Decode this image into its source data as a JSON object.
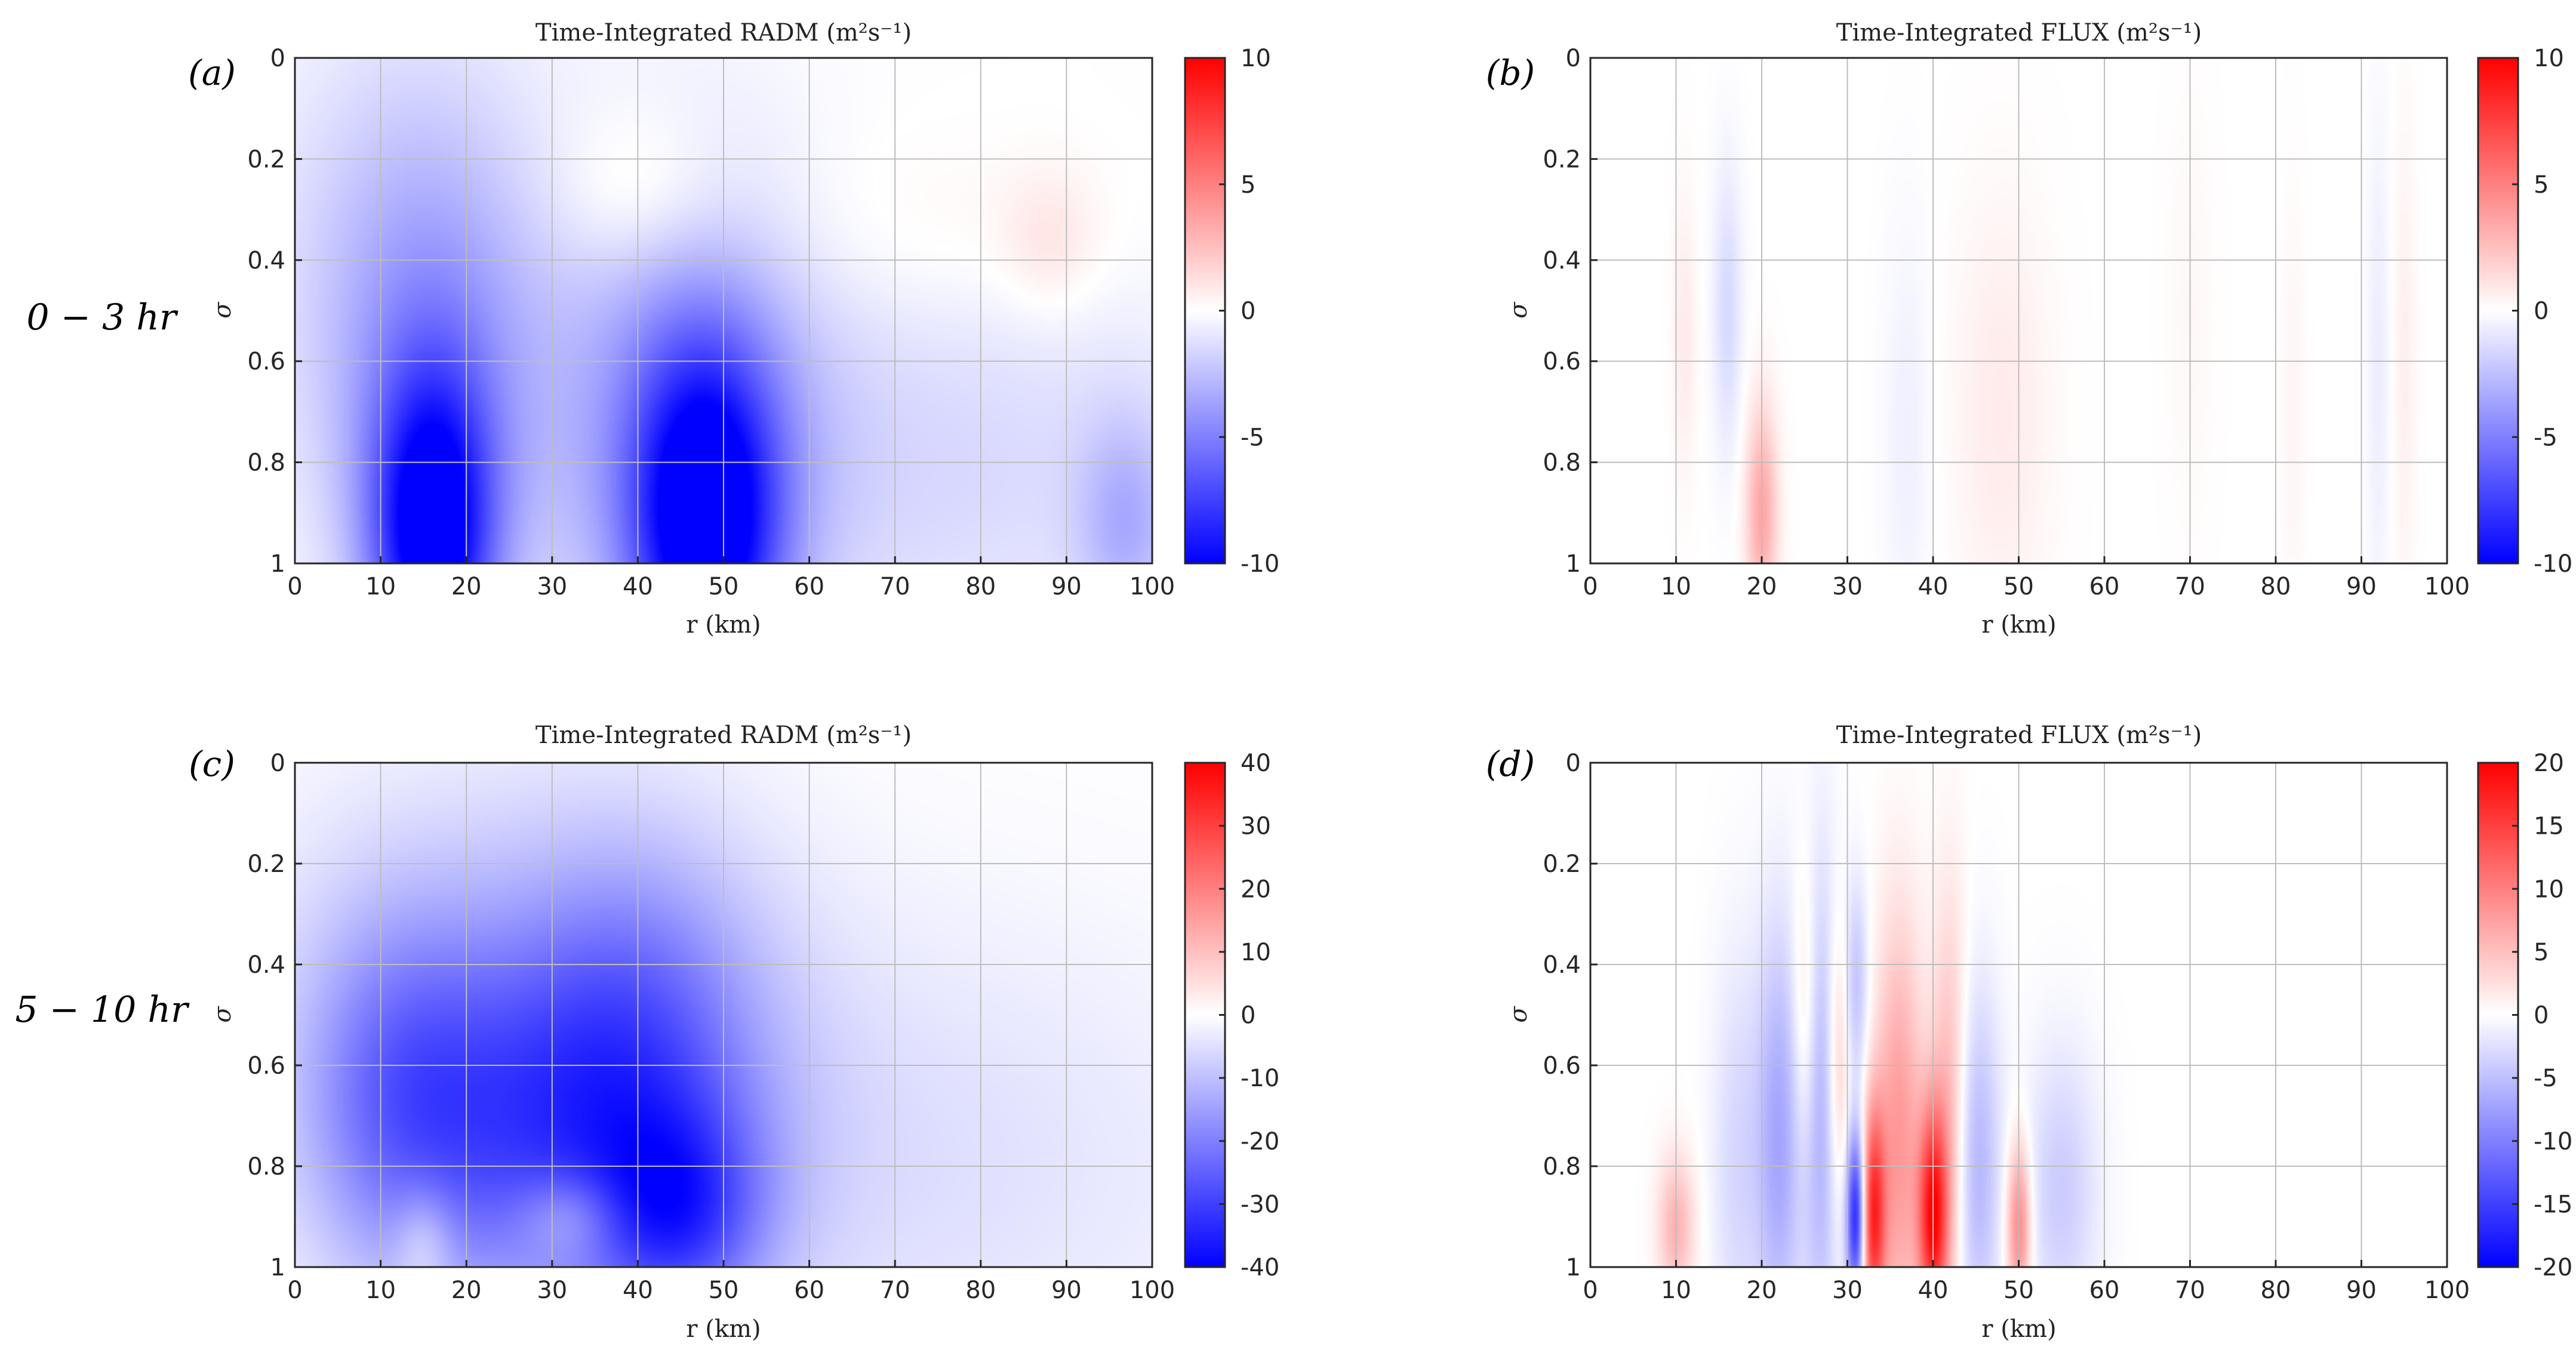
{
  "row_labels": [
    "0 − 3 hr",
    "5 − 10 hr"
  ],
  "colormap": {
    "negative": "#0000ff",
    "zero": "#ffffff",
    "positive": "#ff0000"
  },
  "chart_data": [
    {
      "panel": "(a)",
      "type": "heatmap",
      "title": "Time-Integrated RADM (m²s⁻¹)",
      "xlabel": "r (km)",
      "ylabel": "σ",
      "xlim": [
        0,
        100
      ],
      "ylim": [
        0,
        1
      ],
      "y_reversed": true,
      "grid": true,
      "xticks": [
        0,
        10,
        20,
        30,
        40,
        50,
        60,
        70,
        80,
        90,
        100
      ],
      "yticks": [
        0,
        0.2,
        0.4,
        0.6,
        0.8,
        1
      ],
      "colorbar": {
        "range": [
          -10,
          10
        ],
        "ticks": [
          10,
          5,
          0,
          -5,
          -10
        ]
      },
      "features": [
        {
          "r": 16,
          "sigma": 0.95,
          "value": -10,
          "sr": 5,
          "ss": 0.22
        },
        {
          "r": 48,
          "sigma": 0.93,
          "value": -10,
          "sr": 6,
          "ss": 0.24
        },
        {
          "r": 16,
          "sigma": 0.65,
          "value": -3,
          "sr": 9,
          "ss": 0.35
        },
        {
          "r": 45,
          "sigma": 0.7,
          "value": -3.5,
          "sr": 11,
          "ss": 0.35
        },
        {
          "r": 12,
          "sigma": 0.4,
          "value": -1.5,
          "sr": 12,
          "ss": 0.35
        },
        {
          "r": 75,
          "sigma": 0.8,
          "value": -1.5,
          "sr": 25,
          "ss": 0.3
        },
        {
          "r": 97,
          "sigma": 0.92,
          "value": -2.5,
          "sr": 4,
          "ss": 0.15
        },
        {
          "r": 40,
          "sigma": 0.27,
          "value": 1.5,
          "sr": 7,
          "ss": 0.12
        },
        {
          "r": 72,
          "sigma": 0.35,
          "value": 0.6,
          "sr": 18,
          "ss": 0.14
        },
        {
          "r": 88,
          "sigma": 0.37,
          "value": 1,
          "sr": 4,
          "ss": 0.1
        }
      ]
    },
    {
      "panel": "(b)",
      "type": "heatmap",
      "title": "Time-Integrated FLUX (m²s⁻¹)",
      "xlabel": "r (km)",
      "ylabel": "σ",
      "xlim": [
        0,
        100
      ],
      "ylim": [
        0,
        1
      ],
      "y_reversed": true,
      "grid": true,
      "xticks": [
        0,
        10,
        20,
        30,
        40,
        50,
        60,
        70,
        80,
        90,
        100
      ],
      "yticks": [
        0,
        0.2,
        0.4,
        0.6,
        0.8,
        1
      ],
      "colorbar": {
        "range": [
          -10,
          10
        ],
        "ticks": [
          10,
          5,
          0,
          -5,
          -10
        ]
      },
      "features": [
        {
          "r": 20,
          "sigma": 0.9,
          "value": 3.5,
          "sr": 1.3,
          "ss": 0.15
        },
        {
          "r": 16,
          "sigma": 0.5,
          "value": -1.5,
          "sr": 1.2,
          "ss": 0.2
        },
        {
          "r": 11,
          "sigma": 0.55,
          "value": 0.8,
          "sr": 1,
          "ss": 0.2
        },
        {
          "r": 48,
          "sigma": 0.7,
          "value": 0.8,
          "sr": 4,
          "ss": 0.3
        },
        {
          "r": 37,
          "sigma": 0.75,
          "value": -0.6,
          "sr": 2,
          "ss": 0.3
        },
        {
          "r": 92,
          "sigma": 0.6,
          "value": -0.7,
          "sr": 1,
          "ss": 0.35
        },
        {
          "r": 95,
          "sigma": 0.6,
          "value": 0.6,
          "sr": 1,
          "ss": 0.35
        },
        {
          "r": 82,
          "sigma": 0.7,
          "value": 0.4,
          "sr": 1,
          "ss": 0.3
        },
        {
          "r": 70,
          "sigma": 0.5,
          "value": 0.3,
          "sr": 2,
          "ss": 0.3
        }
      ]
    },
    {
      "panel": "(c)",
      "type": "heatmap",
      "title": "Time-Integrated RADM (m²s⁻¹)",
      "xlabel": "r (km)",
      "ylabel": "σ",
      "xlim": [
        0,
        100
      ],
      "ylim": [
        0,
        1
      ],
      "y_reversed": true,
      "grid": true,
      "xticks": [
        0,
        10,
        20,
        30,
        40,
        50,
        60,
        70,
        80,
        90,
        100
      ],
      "yticks": [
        0,
        0.2,
        0.4,
        0.6,
        0.8,
        1
      ],
      "colorbar": {
        "range": [
          -40,
          40
        ],
        "ticks": [
          40,
          30,
          20,
          10,
          0,
          -10,
          -20,
          -30,
          -40
        ]
      },
      "features": [
        {
          "r": 30,
          "sigma": 0.75,
          "value": -22,
          "sr": 15,
          "ss": 0.25
        },
        {
          "r": 45,
          "sigma": 0.9,
          "value": -20,
          "sr": 7,
          "ss": 0.15
        },
        {
          "r": 12,
          "sigma": 0.65,
          "value": -14,
          "sr": 8,
          "ss": 0.25
        },
        {
          "r": 40,
          "sigma": 0.5,
          "value": -12,
          "sr": 10,
          "ss": 0.25
        },
        {
          "r": 25,
          "sigma": 0.4,
          "value": -7,
          "sr": 20,
          "ss": 0.3
        },
        {
          "r": 70,
          "sigma": 0.8,
          "value": -5,
          "sr": 30,
          "ss": 0.35
        },
        {
          "r": 15,
          "sigma": 0.95,
          "value": 9,
          "sr": 2.5,
          "ss": 0.08
        },
        {
          "r": 32,
          "sigma": 0.9,
          "value": 10,
          "sr": 4,
          "ss": 0.06
        }
      ]
    },
    {
      "panel": "(d)",
      "type": "heatmap",
      "title": "Time-Integrated FLUX (m²s⁻¹)",
      "xlabel": "r (km)",
      "ylabel": "σ",
      "xlim": [
        0,
        100
      ],
      "ylim": [
        0,
        1
      ],
      "y_reversed": true,
      "grid": true,
      "xticks": [
        0,
        10,
        20,
        30,
        40,
        50,
        60,
        70,
        80,
        90,
        100
      ],
      "yticks": [
        0,
        0.2,
        0.4,
        0.6,
        0.8,
        1
      ],
      "colorbar": {
        "range": [
          -20,
          20
        ],
        "ticks": [
          20,
          15,
          10,
          5,
          0,
          -5,
          -10,
          -15,
          -20
        ]
      },
      "features": [
        {
          "r": 31,
          "sigma": 0.9,
          "value": -18,
          "sr": 0.8,
          "ss": 0.12
        },
        {
          "r": 33,
          "sigma": 0.9,
          "value": 16,
          "sr": 1,
          "ss": 0.15
        },
        {
          "r": 36,
          "sigma": 0.75,
          "value": 8,
          "sr": 2,
          "ss": 0.3
        },
        {
          "r": 40,
          "sigma": 0.9,
          "value": 18,
          "sr": 1.2,
          "ss": 0.15
        },
        {
          "r": 42,
          "sigma": 0.7,
          "value": 6,
          "sr": 1.5,
          "ss": 0.3
        },
        {
          "r": 45,
          "sigma": 0.8,
          "value": -6,
          "sr": 2,
          "ss": 0.25
        },
        {
          "r": 50,
          "sigma": 0.92,
          "value": 10,
          "sr": 1,
          "ss": 0.12
        },
        {
          "r": 22,
          "sigma": 0.75,
          "value": -7,
          "sr": 2,
          "ss": 0.3
        },
        {
          "r": 27,
          "sigma": 0.7,
          "value": -6,
          "sr": 1.5,
          "ss": 0.35
        },
        {
          "r": 25,
          "sigma": 0.5,
          "value": 4,
          "sr": 1,
          "ss": 0.2
        },
        {
          "r": 10,
          "sigma": 0.92,
          "value": 6,
          "sr": 1.5,
          "ss": 0.1
        },
        {
          "r": 55,
          "sigma": 0.85,
          "value": -4,
          "sr": 3,
          "ss": 0.2
        },
        {
          "r": 17,
          "sigma": 0.8,
          "value": -3,
          "sr": 2,
          "ss": 0.3
        },
        {
          "r": 31,
          "sigma": 0.45,
          "value": -5,
          "sr": 1,
          "ss": 0.15
        },
        {
          "r": 29,
          "sigma": 0.6,
          "value": 5,
          "sr": 1,
          "ss": 0.2
        }
      ]
    }
  ]
}
